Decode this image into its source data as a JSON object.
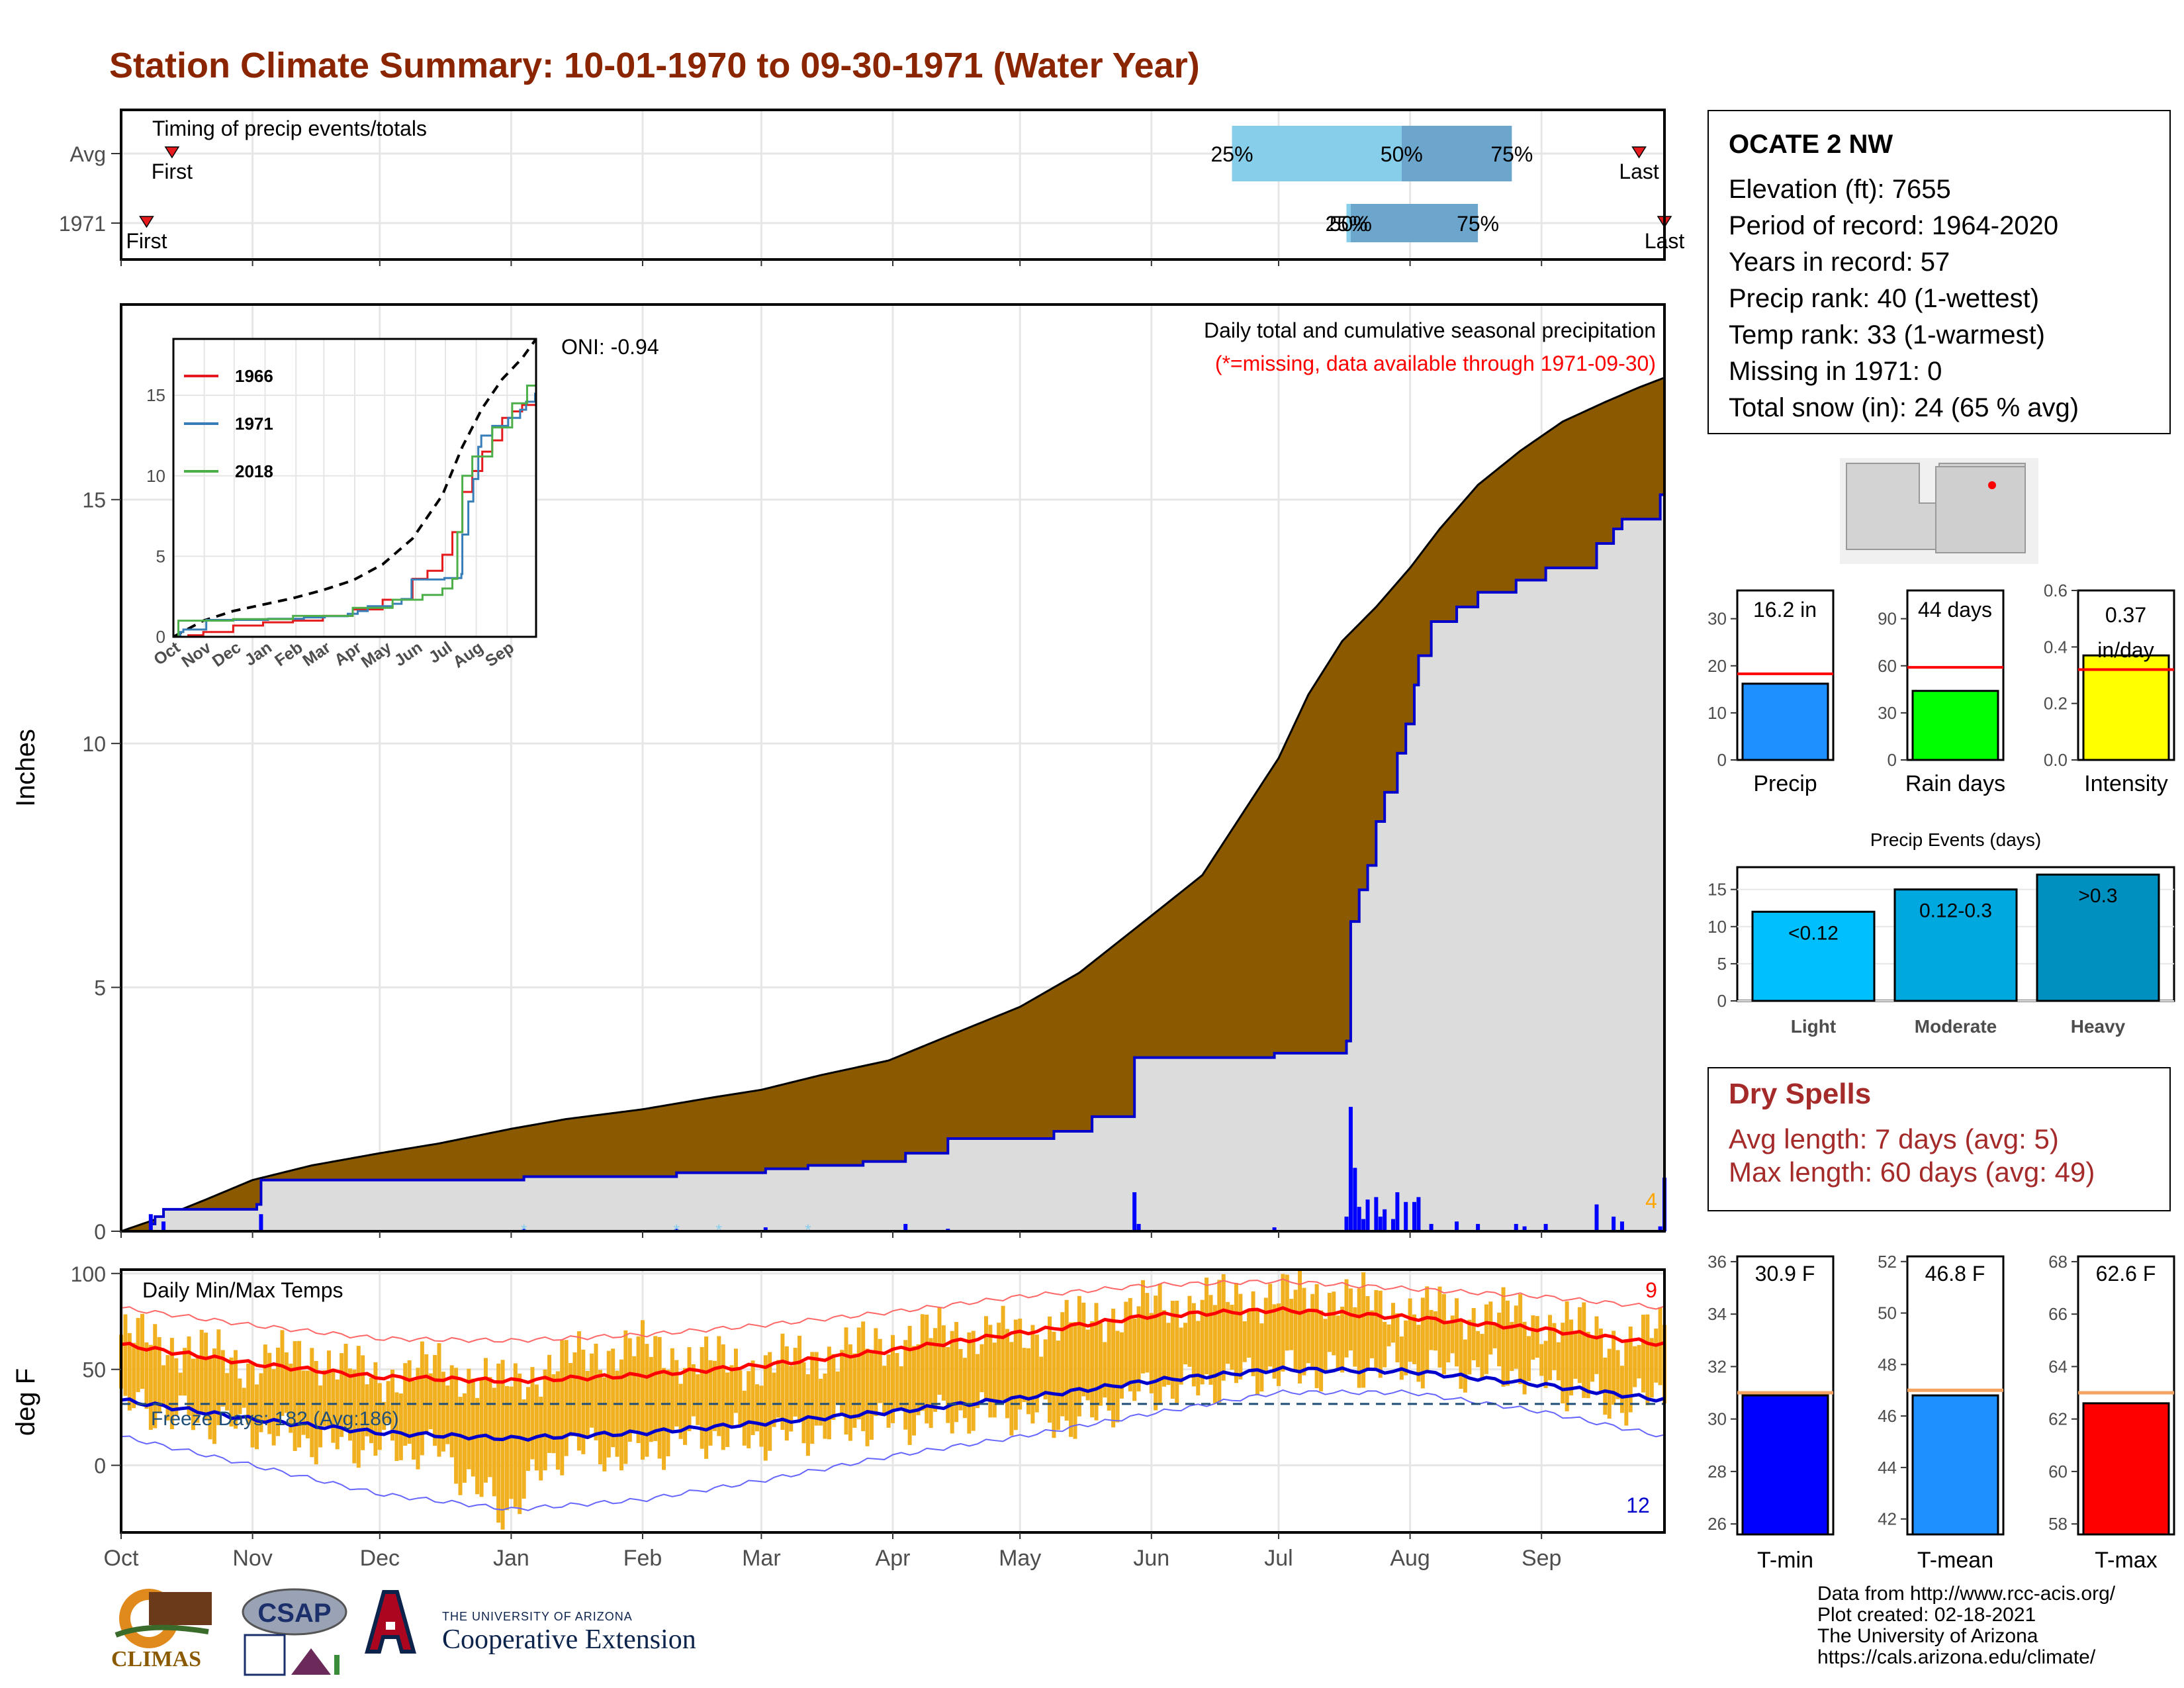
{
  "title": "Station Climate Summary: 10-01-1970 to 09-30-1971 (Water Year)",
  "station": {
    "name": "OCATE 2 NW",
    "lines": [
      "Elevation (ft): 7655",
      "Period of record: 1964-2020",
      "Years in record: 57",
      "Precip rank: 40 (1-wettest)",
      "Temp rank: 33 (1-warmest)",
      "Missing in 1971: 0",
      "Total snow (in): 24 (65 % avg)"
    ]
  },
  "dry_spells": {
    "title": "Dry Spells",
    "avg_line": "Avg length: 7 days (avg: 5)",
    "max_line": "Max length: 60 days (avg: 49)"
  },
  "credits": [
    "Data from http://www.rcc-acis.org/",
    "Plot created: 02-18-2021",
    "The University of Arizona",
    "https://cals.arizona.edu/climate/"
  ],
  "logos": {
    "climas": "CLIMAS",
    "csap": "CSAP",
    "coop_small": "THE UNIVERSITY OF ARIZONA",
    "coop_big": "Cooperative Extension"
  },
  "colors": {
    "title": "#8B2500",
    "avg_fill": "#8B5A00",
    "year_fill": "#DCDCDC",
    "daily_bar": "#0000FF",
    "temp_bar": "#F0B020",
    "tmax_line": "#FF0000",
    "tmin_line": "#0000CD",
    "precip_bar": "#1E90FF",
    "raindays_bar": "#00FF00",
    "intensity_bar": "#FFFF00",
    "tmin_bar": "#0000FF",
    "tmean_bar": "#1E90FF",
    "tmax_bar": "#FF0000",
    "light_bar": "#00BFFF",
    "moderate_bar": "#00A8E0",
    "heavy_bar": "#0090C0"
  },
  "chart_data": [
    {
      "type": "timeline",
      "id": "timing",
      "title": "Timing of precip events/totals",
      "rows": [
        {
          "label": "Avg",
          "first": "Oct 13",
          "last": "Sep 24",
          "p25": "Jun 20",
          "p50": "Jul 30",
          "p75": "Aug 25",
          "p25_label": "25%",
          "p50_label": "50%",
          "p75_label": "75%",
          "first_label": "First",
          "last_label": "Last"
        },
        {
          "label": "1971",
          "first": "Oct 7",
          "last": "Sep 30",
          "p25": "Jul 17",
          "p50": "Jul 18",
          "p75": "Aug 17",
          "p25_label": "25%",
          "p50_label": "50%",
          "p75_label": "75%",
          "first_label": "First",
          "last_label": "Last"
        }
      ]
    },
    {
      "type": "area",
      "id": "precip",
      "title": "Daily total and cumulative seasonal precipitation",
      "subtitle": "(*=missing, data available through 1971-09-30)",
      "ylabel": "Inches",
      "ylim": [
        0,
        19
      ],
      "yticks": [
        0,
        5,
        10,
        15
      ],
      "oni": "ONI: -0.94",
      "corner_label": "4",
      "x_months": [
        "Oct",
        "Nov",
        "Dec",
        "Jan",
        "Feb",
        "Mar",
        "Apr",
        "May",
        "Jun",
        "Jul",
        "Aug",
        "Sep"
      ],
      "avg_cumulative": {
        "days": [
          0,
          10,
          20,
          31,
          45,
          61,
          75,
          92,
          105,
          123,
          140,
          151,
          165,
          181,
          195,
          212,
          226,
          242,
          255,
          273,
          280,
          288,
          296,
          304,
          311,
          320,
          330,
          340,
          350,
          358,
          364
        ],
        "values": [
          0,
          0.3,
          0.65,
          1.05,
          1.35,
          1.6,
          1.8,
          2.1,
          2.3,
          2.5,
          2.75,
          2.9,
          3.2,
          3.5,
          4.0,
          4.6,
          5.3,
          6.4,
          7.3,
          9.7,
          11.0,
          12.1,
          12.8,
          13.6,
          14.4,
          15.3,
          16.0,
          16.6,
          17.0,
          17.3,
          17.5
        ]
      },
      "year_cumulative_steps": [
        [
          0,
          0.0
        ],
        [
          7,
          0.15
        ],
        [
          8,
          0.3
        ],
        [
          10,
          0.45
        ],
        [
          32,
          0.55
        ],
        [
          33,
          1.05
        ],
        [
          95,
          1.12
        ],
        [
          131,
          1.2
        ],
        [
          152,
          1.28
        ],
        [
          162,
          1.35
        ],
        [
          175,
          1.43
        ],
        [
          185,
          1.6
        ],
        [
          195,
          1.9
        ],
        [
          220,
          2.05
        ],
        [
          229,
          2.35
        ],
        [
          239,
          3.56
        ],
        [
          272,
          3.65
        ],
        [
          289,
          3.9
        ],
        [
          290,
          6.35
        ],
        [
          292,
          7.0
        ],
        [
          294,
          7.5
        ],
        [
          296,
          8.4
        ],
        [
          298,
          9.0
        ],
        [
          301,
          9.8
        ],
        [
          303,
          10.4
        ],
        [
          305,
          11.2
        ],
        [
          306,
          11.8
        ],
        [
          309,
          12.5
        ],
        [
          315,
          12.8
        ],
        [
          320,
          13.1
        ],
        [
          329,
          13.35
        ],
        [
          336,
          13.6
        ],
        [
          348,
          14.1
        ],
        [
          352,
          14.4
        ],
        [
          354,
          14.6
        ],
        [
          363,
          15.1
        ],
        [
          364,
          16.2
        ]
      ],
      "daily_events": [
        [
          7,
          0.35
        ],
        [
          10,
          0.2
        ],
        [
          33,
          0.35
        ],
        [
          95,
          0.05
        ],
        [
          131,
          0.05
        ],
        [
          152,
          0.08
        ],
        [
          185,
          0.15
        ],
        [
          195,
          0.05
        ],
        [
          239,
          0.8
        ],
        [
          240,
          0.15
        ],
        [
          272,
          0.08
        ],
        [
          289,
          0.3
        ],
        [
          290,
          2.55
        ],
        [
          291,
          1.3
        ],
        [
          292,
          0.5
        ],
        [
          293,
          0.25
        ],
        [
          294,
          0.65
        ],
        [
          296,
          0.7
        ],
        [
          297,
          0.3
        ],
        [
          298,
          0.45
        ],
        [
          300,
          0.25
        ],
        [
          301,
          0.8
        ],
        [
          303,
          0.6
        ],
        [
          305,
          0.6
        ],
        [
          306,
          0.7
        ],
        [
          309,
          0.15
        ],
        [
          315,
          0.2
        ],
        [
          320,
          0.15
        ],
        [
          329,
          0.15
        ],
        [
          331,
          0.1
        ],
        [
          336,
          0.15
        ],
        [
          348,
          0.55
        ],
        [
          352,
          0.3
        ],
        [
          354,
          0.2
        ],
        [
          363,
          0.1
        ],
        [
          364,
          1.1
        ]
      ],
      "snow_marks": [
        95,
        131,
        141,
        162
      ]
    },
    {
      "type": "line",
      "id": "inset",
      "ylim": [
        0,
        18.5
      ],
      "yticks": [
        0,
        5,
        10,
        15
      ],
      "x_months": [
        "Oct",
        "Nov",
        "Dec",
        "Jan",
        "Feb",
        "Mar",
        "Apr",
        "May",
        "Jun",
        "Jul",
        "Aug",
        "Sep"
      ],
      "series": [
        {
          "name": "1966",
          "color": "#E41A1C",
          "days": [
            0,
            15,
            30,
            60,
            90,
            120,
            150,
            180,
            210,
            240,
            255,
            270,
            280,
            290,
            300,
            310,
            320,
            330,
            340,
            350,
            364
          ],
          "values": [
            0,
            0.1,
            0.3,
            0.7,
            0.9,
            1.0,
            1.3,
            1.7,
            2.3,
            3.6,
            4.1,
            5.1,
            6.5,
            9.0,
            10.3,
            11.5,
            12.2,
            13.6,
            14.0,
            14.4,
            15.4
          ]
        },
        {
          "name": "1971",
          "color": "#377EB8",
          "days": [
            0,
            7,
            10,
            33,
            95,
            131,
            152,
            175,
            185,
            195,
            220,
            229,
            239,
            272,
            289,
            290,
            296,
            301,
            306,
            309,
            320,
            336,
            348,
            354,
            363,
            364
          ],
          "values": [
            0,
            0.3,
            0.45,
            1.05,
            1.12,
            1.2,
            1.28,
            1.43,
            1.6,
            1.9,
            2.05,
            2.35,
            3.56,
            3.65,
            3.9,
            6.35,
            8.4,
            9.8,
            11.8,
            12.5,
            13.1,
            13.6,
            14.1,
            14.6,
            15.1,
            16.2
          ]
        },
        {
          "name": "2018",
          "color": "#4DAF4A",
          "days": [
            0,
            5,
            60,
            120,
            180,
            220,
            250,
            270,
            280,
            285,
            290,
            300,
            320,
            340,
            355,
            364
          ],
          "values": [
            0,
            1.0,
            1.1,
            1.3,
            1.8,
            2.3,
            2.6,
            3.0,
            3.6,
            6.5,
            10.0,
            11.2,
            13.0,
            14.5,
            15.6,
            15.9
          ]
        }
      ],
      "avg_days": [
        0,
        30,
        60,
        90,
        120,
        150,
        180,
        210,
        240,
        270,
        290,
        310,
        330,
        350,
        364
      ],
      "avg_values": [
        0,
        1.0,
        1.6,
        2.0,
        2.4,
        2.9,
        3.5,
        4.5,
        6.1,
        8.8,
        11.8,
        14.2,
        16.0,
        17.3,
        18.5
      ]
    },
    {
      "type": "bar",
      "id": "temps",
      "title": "Daily Min/Max Temps",
      "ylabel": "deg F",
      "ylim": [
        -35,
        102
      ],
      "yticks": [
        0,
        50,
        100
      ],
      "freeze_line": 32,
      "freeze_label": "Freeze Days: 182 (Avg:186)",
      "record_high_count": "9",
      "record_low_count": "12",
      "x_months": [
        "Oct",
        "Nov",
        "Dec",
        "Jan",
        "Feb",
        "Mar",
        "Apr",
        "May",
        "Jun",
        "Jul",
        "Aug",
        "Sep"
      ],
      "normal_max": {
        "days": [
          0,
          31,
          61,
          92,
          123,
          151,
          182,
          212,
          243,
          273,
          304,
          335,
          364
        ],
        "values": [
          63,
          53,
          46,
          44,
          47,
          52,
          60,
          69,
          78,
          81,
          77,
          71,
          63
        ]
      },
      "normal_min": {
        "days": [
          0,
          31,
          61,
          92,
          123,
          151,
          182,
          212,
          243,
          273,
          304,
          335,
          364
        ],
        "values": [
          34,
          24,
          17,
          14,
          17,
          22,
          28,
          35,
          44,
          50,
          49,
          42,
          34
        ]
      },
      "record_max": {
        "days": [
          0,
          31,
          61,
          92,
          123,
          151,
          182,
          212,
          243,
          273,
          304,
          335,
          364
        ],
        "values": [
          82,
          73,
          66,
          65,
          68,
          73,
          80,
          88,
          94,
          96,
          92,
          88,
          82
        ]
      },
      "record_min": {
        "days": [
          0,
          31,
          61,
          92,
          123,
          151,
          182,
          212,
          243,
          273,
          304,
          335,
          364
        ],
        "values": [
          15,
          0,
          -15,
          -23,
          -18,
          -8,
          5,
          15,
          27,
          38,
          38,
          28,
          15
        ]
      },
      "daily_max": {
        "days": [
          0,
          15,
          30,
          45,
          60,
          75,
          90,
          105,
          120,
          135,
          150,
          165,
          180,
          195,
          210,
          225,
          240,
          255,
          270,
          285,
          300,
          315,
          330,
          345,
          355,
          364
        ],
        "values": [
          68,
          62,
          53,
          58,
          46,
          52,
          42,
          55,
          62,
          56,
          52,
          58,
          64,
          70,
          68,
          75,
          82,
          86,
          88,
          90,
          82,
          80,
          78,
          72,
          65,
          70
        ]
      },
      "daily_min": {
        "days": [
          0,
          15,
          30,
          45,
          60,
          75,
          90,
          105,
          120,
          135,
          150,
          165,
          180,
          195,
          210,
          225,
          240,
          255,
          270,
          285,
          300,
          315,
          330,
          345,
          355,
          364
        ],
        "values": [
          32,
          25,
          20,
          12,
          10,
          8,
          -25,
          10,
          5,
          15,
          14,
          18,
          22,
          25,
          28,
          22,
          38,
          42,
          48,
          50,
          52,
          50,
          48,
          38,
          30,
          40
        ]
      }
    },
    {
      "type": "bar",
      "id": "mini_precip",
      "categories": [
        "Precip"
      ],
      "value": 16.2,
      "avg": 18.3,
      "label": "16.2 in",
      "ylim": [
        0,
        36
      ],
      "yticks": [
        0,
        10,
        20,
        30
      ]
    },
    {
      "type": "bar",
      "id": "mini_raindays",
      "categories": [
        "Rain days"
      ],
      "value": 44,
      "avg": 59,
      "label": "44 days",
      "ylim": [
        0,
        108
      ],
      "yticks": [
        0,
        30,
        60,
        90
      ]
    },
    {
      "type": "bar",
      "id": "mini_intensity",
      "categories": [
        "Intensity"
      ],
      "value": 0.37,
      "avg": 0.32,
      "label": "0.37 in/day",
      "ylim": [
        0,
        0.6
      ],
      "yticks": [
        "0.0",
        "0.2",
        "0.4",
        "0.6"
      ]
    },
    {
      "type": "bar",
      "id": "events",
      "title": "Precip Events (days)",
      "categories": [
        "Light",
        "Moderate",
        "Heavy"
      ],
      "bar_labels": [
        "<0.12",
        "0.12-0.3",
        ">0.3"
      ],
      "values": [
        12,
        15,
        17
      ],
      "ylim": [
        0,
        18
      ],
      "yticks": [
        0,
        5,
        10,
        15
      ]
    },
    {
      "type": "bar",
      "id": "mini_tmin",
      "categories": [
        "T-min"
      ],
      "value": 30.9,
      "avg": 31.0,
      "label": "30.9 F",
      "ylim": [
        25.6,
        36.2
      ],
      "yticks": [
        28,
        30,
        32,
        34,
        36,
        26
      ]
    },
    {
      "type": "bar",
      "id": "mini_tmean",
      "categories": [
        "T-mean"
      ],
      "value": 46.8,
      "avg": 47.0,
      "label": "46.8 F",
      "ylim": [
        41.4,
        52.2
      ],
      "yticks": [
        42,
        44,
        46,
        48,
        50,
        52
      ]
    },
    {
      "type": "bar",
      "id": "mini_tmax",
      "categories": [
        "T-max"
      ],
      "value": 62.6,
      "avg": 63.0,
      "label": "62.6 F",
      "ylim": [
        57.6,
        68.2
      ],
      "yticks": [
        58,
        60,
        62,
        64,
        66,
        68
      ]
    }
  ]
}
